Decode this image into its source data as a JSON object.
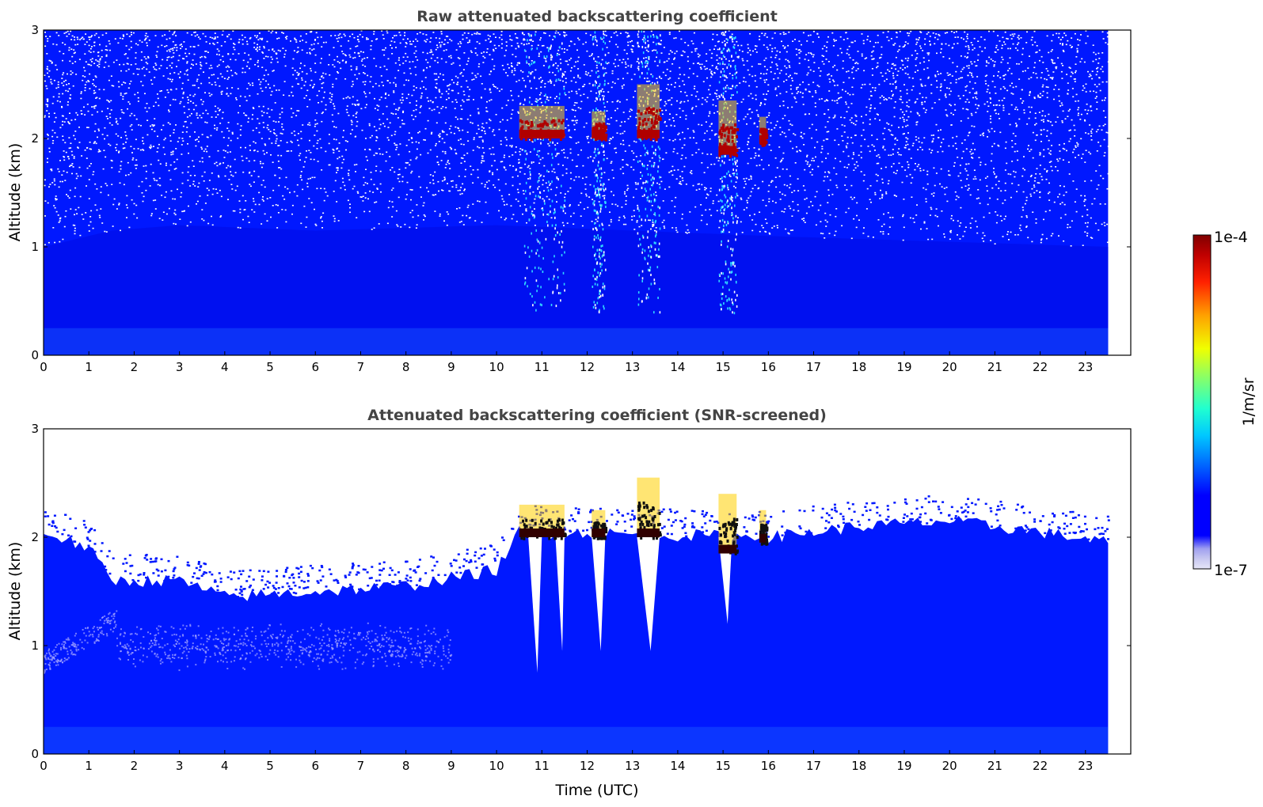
{
  "chart_data": [
    {
      "type": "heatmap",
      "title": "Raw attenuated backscattering coefficient",
      "xlabel": "",
      "ylabel": "Altitude (km)",
      "xlim": [
        0,
        24
      ],
      "ylim": [
        0,
        3
      ],
      "x_ticks": [
        "0",
        "1",
        "2",
        "3",
        "4",
        "5",
        "6",
        "7",
        "8",
        "9",
        "10",
        "11",
        "12",
        "13",
        "14",
        "15",
        "16",
        "17",
        "18",
        "19",
        "20",
        "21",
        "22",
        "23"
      ],
      "y_ticks": [
        "0",
        "1",
        "2",
        "3"
      ],
      "data_time_range_utc": [
        0,
        23.5
      ],
      "screening": "none",
      "noise_dominated_above_km": 1.0,
      "cloud_layers": [
        {
          "t_start": 10.5,
          "t_end": 11.5,
          "base_km": 2.0,
          "top_km": 2.3
        },
        {
          "t_start": 12.1,
          "t_end": 12.4,
          "base_km": 2.0,
          "top_km": 2.25
        },
        {
          "t_start": 13.1,
          "t_end": 13.6,
          "base_km": 2.0,
          "top_km": 2.5
        },
        {
          "t_start": 14.9,
          "t_end": 15.3,
          "base_km": 1.85,
          "top_km": 2.35
        },
        {
          "t_start": 15.8,
          "t_end": 15.95,
          "base_km": 1.95,
          "top_km": 2.2
        }
      ],
      "precipitation_streaks": [
        {
          "t_start": 10.6,
          "t_end": 11.5,
          "lowest_km": 0.4
        },
        {
          "t_start": 12.1,
          "t_end": 12.4,
          "lowest_km": 0.4
        },
        {
          "t_start": 13.1,
          "t_end": 13.6,
          "lowest_km": 0.4
        },
        {
          "t_start": 14.9,
          "t_end": 15.3,
          "lowest_km": 0.4
        }
      ],
      "boundary_layer_top_km": [
        [
          0,
          1.0
        ],
        [
          1.5,
          1.15
        ],
        [
          3,
          1.2
        ],
        [
          6,
          1.15
        ],
        [
          10,
          1.2
        ],
        [
          16,
          1.1
        ],
        [
          23.5,
          1.0
        ]
      ]
    },
    {
      "type": "heatmap",
      "title": "Attenuated backscattering coefficient (SNR-screened)",
      "xlabel": "Time (UTC)",
      "ylabel": "Altitude (km)",
      "xlim": [
        0,
        24
      ],
      "ylim": [
        0,
        3
      ],
      "x_ticks": [
        "0",
        "1",
        "2",
        "3",
        "4",
        "5",
        "6",
        "7",
        "8",
        "9",
        "10",
        "11",
        "12",
        "13",
        "14",
        "15",
        "16",
        "17",
        "18",
        "19",
        "20",
        "21",
        "22",
        "23"
      ],
      "y_ticks": [
        "0",
        "1",
        "2",
        "3"
      ],
      "data_time_range_utc": [
        0,
        23.5
      ],
      "screening": "SNR",
      "valid_top_km": [
        [
          0,
          2.05
        ],
        [
          1,
          1.9
        ],
        [
          1.5,
          1.6
        ],
        [
          3,
          1.6
        ],
        [
          4,
          1.45
        ],
        [
          6,
          1.5
        ],
        [
          8,
          1.55
        ],
        [
          10,
          1.7
        ],
        [
          10.5,
          2.05
        ],
        [
          16,
          2.0
        ],
        [
          18,
          2.1
        ],
        [
          20,
          2.15
        ],
        [
          22,
          2.05
        ],
        [
          23.5,
          1.95
        ]
      ],
      "cloud_layers": [
        {
          "t_start": 10.5,
          "t_end": 11.5,
          "base_km": 2.0,
          "top_km": 2.3
        },
        {
          "t_start": 12.1,
          "t_end": 12.4,
          "base_km": 2.0,
          "top_km": 2.25
        },
        {
          "t_start": 13.1,
          "t_end": 13.6,
          "base_km": 2.0,
          "top_km": 2.55
        },
        {
          "t_start": 14.9,
          "t_end": 15.3,
          "base_km": 1.85,
          "top_km": 2.4
        },
        {
          "t_start": 15.8,
          "t_end": 15.95,
          "base_km": 1.95,
          "top_km": 2.25
        }
      ],
      "screened_gaps": [
        {
          "t_start": 10.7,
          "t_end": 11.0,
          "lowest_km": 0.75
        },
        {
          "t_start": 11.3,
          "t_end": 11.5,
          "lowest_km": 0.95
        },
        {
          "t_start": 12.1,
          "t_end": 12.4,
          "lowest_km": 0.95
        },
        {
          "t_start": 13.1,
          "t_end": 13.6,
          "lowest_km": 0.95
        },
        {
          "t_start": 14.9,
          "t_end": 15.2,
          "lowest_km": 1.2
        }
      ]
    }
  ],
  "colorbar": {
    "label": "1/m/sr",
    "max_label": "1e-4",
    "min_label": "1e-7",
    "scale": "log",
    "colormap": "jet",
    "colors": [
      "#e6e6f8",
      "#c8c8f0",
      "#aaaaf0",
      "#0000ff",
      "#0040ff",
      "#0090ff",
      "#00d8ff",
      "#40ffb0",
      "#a0ff50",
      "#f0ff00",
      "#ffb000",
      "#ff4000",
      "#d00000",
      "#800000"
    ]
  },
  "colors": {
    "background_fill": "#0018ff",
    "noise_blue": "#1a3cff",
    "cloud_red": "#b00000",
    "cloud_core": "#300000",
    "streak_cyan": "#30d8ff",
    "white": "#ffffff"
  }
}
